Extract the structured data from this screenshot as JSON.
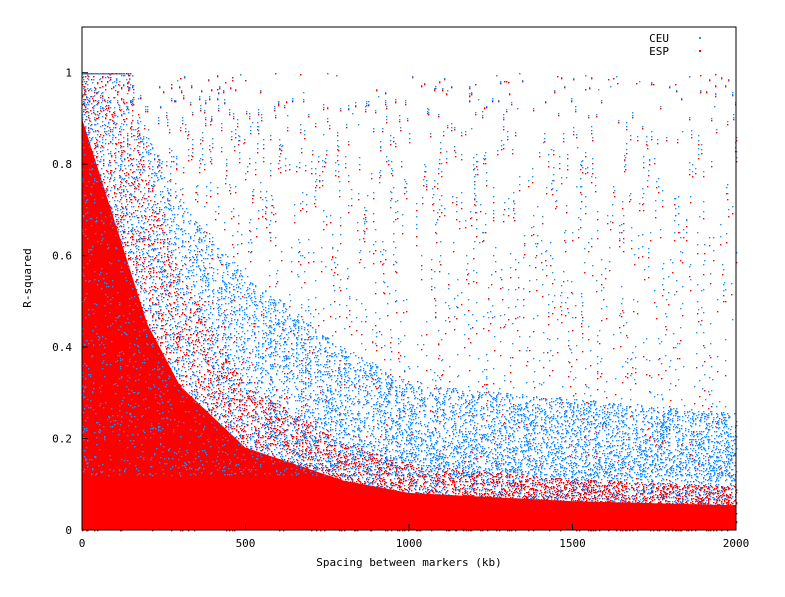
{
  "chart_data": {
    "type": "scatter",
    "title": "",
    "xlabel": "Spacing between markers (kb)",
    "ylabel": "R-squared",
    "xlim": [
      0,
      2000
    ],
    "ylim": [
      0,
      1.1
    ],
    "x_ticks": [
      {
        "value": 0,
        "label": "0"
      },
      {
        "value": 500,
        "label": "500"
      },
      {
        "value": 1000,
        "label": "1000"
      },
      {
        "value": 1500,
        "label": "1500"
      },
      {
        "value": 2000,
        "label": "2000"
      }
    ],
    "y_ticks": [
      {
        "value": 0,
        "label": "0"
      },
      {
        "value": 0.2,
        "label": "0.2"
      },
      {
        "value": 0.4,
        "label": "0.4"
      },
      {
        "value": 0.6,
        "label": "0.6"
      },
      {
        "value": 0.8,
        "label": "0.8"
      },
      {
        "value": 1,
        "label": "1"
      }
    ],
    "grid": false,
    "legend_position": "top-right",
    "series": [
      {
        "name": "CEU",
        "color": "#1e90ff",
        "density_profile": {
          "description_of_shape": "r2 decays with distance; dense band at 0.05-0.25 beyond 800 kb",
          "points": [
            {
              "x": 0,
              "y": 0.9
            },
            {
              "x": 100,
              "y": 0.7
            },
            {
              "x": 200,
              "y": 0.55
            },
            {
              "x": 300,
              "y": 0.45
            },
            {
              "x": 500,
              "y": 0.35
            },
            {
              "x": 800,
              "y": 0.25
            },
            {
              "x": 1000,
              "y": 0.2
            },
            {
              "x": 1500,
              "y": 0.18
            },
            {
              "x": 2000,
              "y": 0.16
            }
          ]
        }
      },
      {
        "name": "ESP",
        "color": "#ff0000",
        "density_profile": {
          "description_of_shape": "r2 decays faster; dense below 0.1 beyond 800 kb",
          "points": [
            {
              "x": 0,
              "y": 1.0
            },
            {
              "x": 100,
              "y": 0.75
            },
            {
              "x": 200,
              "y": 0.5
            },
            {
              "x": 300,
              "y": 0.35
            },
            {
              "x": 500,
              "y": 0.2
            },
            {
              "x": 800,
              "y": 0.12
            },
            {
              "x": 1000,
              "y": 0.09
            },
            {
              "x": 1500,
              "y": 0.07
            },
            {
              "x": 2000,
              "y": 0.06
            }
          ]
        }
      }
    ]
  }
}
